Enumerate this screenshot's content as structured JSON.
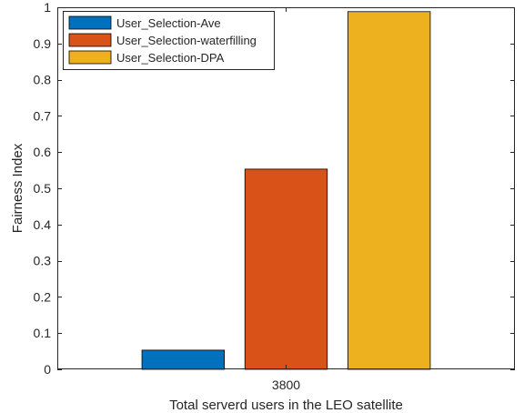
{
  "chart_data": {
    "type": "bar",
    "categories": [
      "3800"
    ],
    "series": [
      {
        "name": "User_Selection-Ave",
        "values": [
          0.053
        ],
        "color": "#0072BD"
      },
      {
        "name": "User_Selection-waterfilling",
        "values": [
          0.553
        ],
        "color": "#D95319"
      },
      {
        "name": "User_Selection-DPA",
        "values": [
          0.988
        ],
        "color": "#EDB120"
      }
    ],
    "xlabel": "Total serverd users in the LEO satellite",
    "ylabel": "Fairness Index",
    "ylim": [
      0,
      1
    ],
    "yticks": [
      "0",
      "0.1",
      "0.2",
      "0.3",
      "0.4",
      "0.5",
      "0.6",
      "0.7",
      "0.8",
      "0.9",
      "1"
    ],
    "grid": false,
    "legend_position": "top-left"
  }
}
